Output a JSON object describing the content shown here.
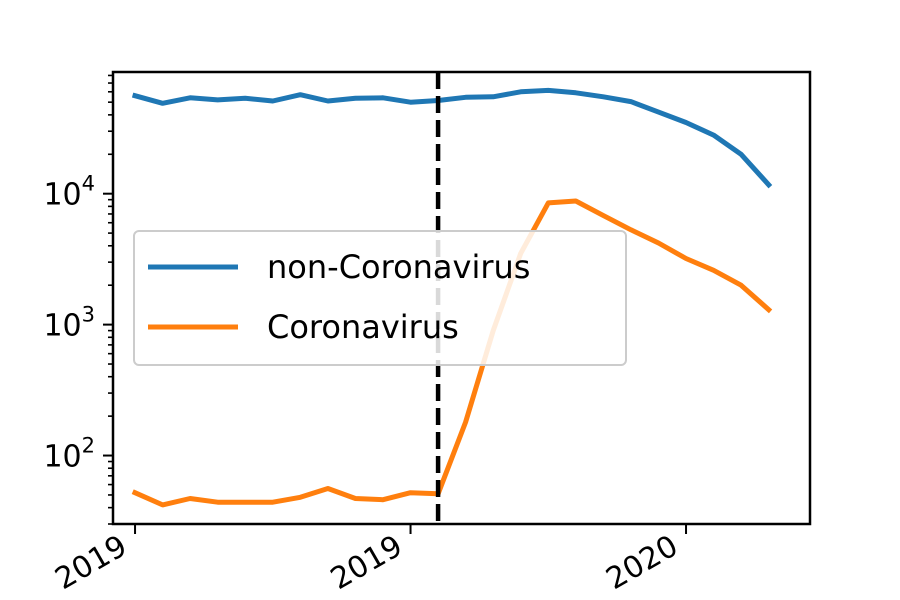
{
  "chart_data": {
    "type": "line",
    "title": "",
    "xlabel": "",
    "ylabel": "",
    "y_scale": "log",
    "ylim": [
      30,
      85000
    ],
    "yticks": [
      {
        "value": 100,
        "base": "10",
        "exp": "2"
      },
      {
        "value": 1000,
        "base": "10",
        "exp": "3"
      },
      {
        "value": 10000,
        "base": "10",
        "exp": "4"
      }
    ],
    "x_ticks": [
      "2019",
      "2019",
      "2020"
    ],
    "x_tick_positions": [
      0,
      10,
      20
    ],
    "xlim": [
      -0.8,
      24.5
    ],
    "vline": {
      "x": 11.0,
      "style": "dashed",
      "color": "#000000"
    },
    "legend_position": "center-left",
    "grid": false,
    "series": [
      {
        "name": "non-Coronavirus",
        "color": "#1f77b4",
        "x": [
          0,
          1,
          2,
          3,
          4,
          5,
          6,
          7,
          8,
          9,
          10,
          11,
          12,
          13,
          14,
          15,
          16,
          17,
          18,
          19,
          20,
          21,
          22,
          23
        ],
        "values": [
          56000,
          49000,
          54000,
          52000,
          53500,
          51000,
          57000,
          51000,
          53500,
          54000,
          50000,
          51500,
          54500,
          55000,
          60000,
          61500,
          59000,
          55000,
          50500,
          42000,
          35000,
          28000,
          20000,
          11700
        ]
      },
      {
        "name": "Coronavirus",
        "color": "#ff7f0e",
        "x": [
          0,
          1,
          2,
          3,
          4,
          5,
          6,
          7,
          8,
          9,
          10,
          11,
          12,
          13,
          14,
          15,
          16,
          17,
          18,
          19,
          20,
          21,
          22,
          23
        ],
        "values": [
          52,
          42,
          47,
          44,
          44,
          44,
          48,
          56,
          47,
          46,
          52,
          51,
          180,
          900,
          3500,
          8500,
          8800,
          6800,
          5300,
          4200,
          3200,
          2600,
          2000,
          1300
        ]
      }
    ]
  }
}
